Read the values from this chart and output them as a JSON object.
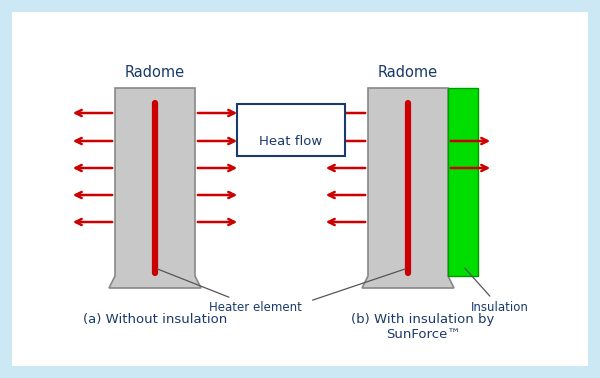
{
  "bg_outer": "#cce8f4",
  "bg_inner": "#ffffff",
  "radome_color": "#c8c8c8",
  "radome_edge": "#888888",
  "heater_color": "#cc0000",
  "insulation_color": "#00dd00",
  "insulation_edge": "#009900",
  "arrow_color": "#cc0000",
  "text_color": "#1a3a6b",
  "legend_border": "#1a3a6b",
  "radome_label": "Radome",
  "heater_label": "Heater element",
  "insulation_label": "Insulation",
  "heatflow_label": "Heat flow",
  "caption_a": "(a) Without insulation",
  "caption_b": "(b) With insulation by\nSunForce™",
  "title_fontsize": 10.5,
  "annot_fontsize": 8.5,
  "caption_fontsize": 9.5,
  "heatflow_fontsize": 9.5
}
